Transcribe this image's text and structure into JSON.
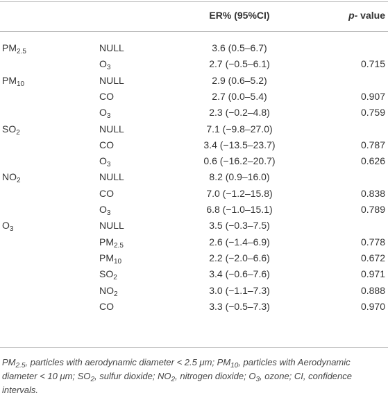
{
  "table": {
    "header": {
      "er": "ER% (95%CI)",
      "p": {
        "italic": "p-",
        "text": " value"
      }
    },
    "rows": [
      {
        "pollutant": {
          "text": "PM",
          "sub": "2.5"
        },
        "adjusted": "NULL",
        "er": "3.6 (0.5–6.7)"
      },
      {
        "adjusted": {
          "text": "O",
          "sub": "3"
        },
        "er": "2.7 (−0.5–6.1)",
        "p": "0.715"
      },
      {
        "pollutant": {
          "text": "PM",
          "sub": "10"
        },
        "adjusted": "NULL",
        "er": "2.9 (0.6–5.2)"
      },
      {
        "adjusted": "CO",
        "er": "2.7 (0.0–5.4)",
        "p": "0.907"
      },
      {
        "adjusted": {
          "text": "O",
          "sub": "3"
        },
        "er": "2.3 (−0.2–4.8)",
        "p": "0.759"
      },
      {
        "pollutant": {
          "text": "SO",
          "sub": "2"
        },
        "adjusted": "NULL",
        "er": "7.1 (−9.8–27.0)"
      },
      {
        "adjusted": "CO",
        "er": "3.4 (−13.5–23.7)",
        "p": "0.787"
      },
      {
        "adjusted": {
          "text": "O",
          "sub": "3"
        },
        "er": "0.6 (−16.2–20.7)",
        "p": "0.626"
      },
      {
        "pollutant": {
          "text": "NO",
          "sub": "2"
        },
        "adjusted": "NULL",
        "er": "8.2 (0.9–16.0)"
      },
      {
        "adjusted": "CO",
        "er": "7.0 (−1.2–15.8)",
        "p": "0.838"
      },
      {
        "adjusted": {
          "text": "O",
          "sub": "3"
        },
        "er": "6.8 (−1.0–15.1)",
        "p": "0.789"
      },
      {
        "pollutant": {
          "text": "O",
          "sub": "3"
        },
        "adjusted": "NULL",
        "er": "3.5 (−0.3–7.5)"
      },
      {
        "adjusted": {
          "text": "PM",
          "sub": "2.5"
        },
        "er": "2.6 (−1.4–6.9)",
        "p": "0.778"
      },
      {
        "adjusted": {
          "text": "PM",
          "sub": "10"
        },
        "er": "2.2 (−2.0–6.6)",
        "p": "0.672"
      },
      {
        "adjusted": {
          "text": "SO",
          "sub": "2"
        },
        "er": "3.4 (−0.6–7.6)",
        "p": "0.971"
      },
      {
        "adjusted": {
          "text": "NO",
          "sub": "2"
        },
        "er": "3.0 (−1.1–7.3)",
        "p": "0.888"
      },
      {
        "adjusted": "CO",
        "er": "3.3 (−0.5–7.3)",
        "p": "0.970"
      }
    ],
    "footnote": [
      {
        "text": "PM"
      },
      {
        "sub": "2.5"
      },
      {
        "text": ", particles with aerodynamic diameter < 2.5 μm; PM"
      },
      {
        "sub": "10"
      },
      {
        "text": ", particles with Aerodynamic diameter < 10 μm; SO"
      },
      {
        "sub": "2"
      },
      {
        "text": ", sulfur dioxide; NO"
      },
      {
        "sub": "2"
      },
      {
        "text": ", nitrogen dioxide; O"
      },
      {
        "sub": "3"
      },
      {
        "text": ", ozone; CI, confidence intervals."
      }
    ]
  }
}
